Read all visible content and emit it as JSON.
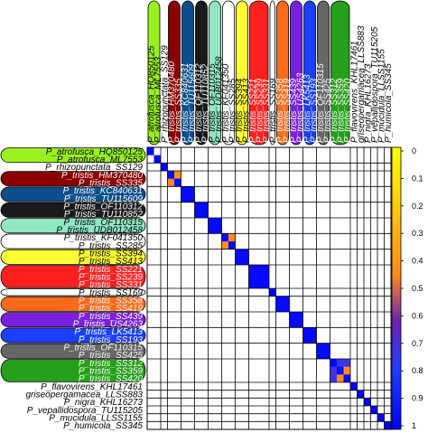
{
  "chart_data": {
    "type": "heatmap",
    "title": "",
    "xlabel": "",
    "ylabel": "",
    "colorbar": {
      "ticks": [
        "0",
        "0.1",
        "0.2",
        "0.3",
        "0.4",
        "0.5",
        "0.6",
        "0.7",
        "0.8",
        "0.9",
        "1"
      ],
      "range": [
        0,
        1
      ],
      "colors": [
        "#ffff00",
        "#ff8c1a",
        "#6a1fb3",
        "#2040ff",
        "#0000ff"
      ]
    },
    "taxa": [
      {
        "label": "P_atrofusca_HQ850125",
        "color": "#99f01f"
      },
      {
        "label": "P_atrofusca_ML7553",
        "color": "#99f01f"
      },
      {
        "label": "P_rhizopunctata_SS129",
        "color": "#ffffff"
      },
      {
        "label": "P_tristis_HM370480",
        "color": "#8b0000"
      },
      {
        "label": "P_tristis_SS335",
        "color": "#8b0000"
      },
      {
        "label": "P_tristis_KC840631",
        "color": "#0c4f8c"
      },
      {
        "label": "P_tristis_TU115609",
        "color": "#0c4f8c"
      },
      {
        "label": "P_tristis_OF110312",
        "color": "#1a1a1a"
      },
      {
        "label": "P_tristis_TU110852",
        "color": "#1a1a1a"
      },
      {
        "label": "P_tristis_OF110315",
        "color": "#8fe8c2"
      },
      {
        "label": "P_tristis_UDB012458",
        "color": "#8fe8c2"
      },
      {
        "label": "P_tristis_KF041350",
        "color": "#ffffff"
      },
      {
        "label": "P_tristis_SS285",
        "color": "#ffffff"
      },
      {
        "label": "P_tristis_SS394",
        "color": "#ffff33"
      },
      {
        "label": "P_tristis_SS413",
        "color": "#ffff33"
      },
      {
        "label": "P_tristis_SS221",
        "color": "#ff2020"
      },
      {
        "label": "P_tristis_SS239",
        "color": "#ff2020"
      },
      {
        "label": "P_tristis_SS331",
        "color": "#ff2020"
      },
      {
        "label": "P_tristis_SS169",
        "color": "#ffffff"
      },
      {
        "label": "P_tristis_SS358",
        "color": "#ff6a1a"
      },
      {
        "label": "P_tristis_SS419",
        "color": "#ff6a1a"
      },
      {
        "label": "P_tristis_SS439",
        "color": "#7a1fe0"
      },
      {
        "label": "P_tristis_US4263",
        "color": "#7a1fe0"
      },
      {
        "label": "P_tristis_LK5413",
        "color": "#1a3fff"
      },
      {
        "label": "P_tristis_SS193",
        "color": "#1a3fff"
      },
      {
        "label": "P_tristis_OF110315",
        "color": "#666666"
      },
      {
        "label": "P_tristis_SS425",
        "color": "#666666"
      },
      {
        "label": "P_tristis_SS312",
        "color": "#26a01a"
      },
      {
        "label": "P_tristis_SS359",
        "color": "#26a01a"
      },
      {
        "label": "P_tristis_SS420",
        "color": "#26a01a"
      },
      {
        "label": "P_flavovirens_KHL17461",
        "color": "#ffffff"
      },
      {
        "label": "griseopergamacea_LLSS883",
        "color": "#ffffff"
      },
      {
        "label": "P_nigra_KHL16273",
        "color": "#ffffff"
      },
      {
        "label": "P_vepallidospora_TU115205",
        "color": "#ffffff"
      },
      {
        "label": "P_mucidula_LLSS1155",
        "color": "#ffffff"
      },
      {
        "label": "P_humicola_SS345",
        "color": "#ffffff"
      }
    ],
    "groups": [
      {
        "start": 0,
        "end": 1,
        "color": "#99f01f"
      },
      {
        "start": 3,
        "end": 4,
        "color": "#8b0000"
      },
      {
        "start": 5,
        "end": 6,
        "color": "#0c4f8c"
      },
      {
        "start": 7,
        "end": 8,
        "color": "#1a1a1a"
      },
      {
        "start": 9,
        "end": 10,
        "color": "#8fe8c2"
      },
      {
        "start": 11,
        "end": 12,
        "color": "#ffffff"
      },
      {
        "start": 13,
        "end": 14,
        "color": "#ffff33"
      },
      {
        "start": 15,
        "end": 17,
        "color": "#ff2020"
      },
      {
        "start": 18,
        "end": 18,
        "color": "#ffffff"
      },
      {
        "start": 19,
        "end": 20,
        "color": "#ff6a1a"
      },
      {
        "start": 21,
        "end": 22,
        "color": "#7a1fe0"
      },
      {
        "start": 23,
        "end": 24,
        "color": "#1a3fff"
      },
      {
        "start": 25,
        "end": 26,
        "color": "#666666"
      },
      {
        "start": 27,
        "end": 29,
        "color": "#26a01a"
      }
    ],
    "grid_lines": [
      2,
      3,
      5,
      7,
      9,
      11,
      13,
      15,
      18,
      19,
      21,
      23,
      25,
      27,
      30,
      31,
      32,
      33,
      34,
      35
    ],
    "heat_blocks": [
      {
        "start": 0,
        "end": 0,
        "value": 0.99
      },
      {
        "start": 1,
        "end": 1,
        "value": 0.99
      },
      {
        "start": 2,
        "end": 2,
        "value": 0.99
      },
      {
        "start": 3,
        "end": 4,
        "value": 0.97
      },
      {
        "start": 5,
        "end": 6,
        "value": 0.97
      },
      {
        "start": 7,
        "end": 8,
        "value": 0.97
      },
      {
        "start": 9,
        "end": 10,
        "value": 0.97
      },
      {
        "start": 11,
        "end": 12,
        "value": 0.97
      },
      {
        "start": 13,
        "end": 14,
        "value": 0.97
      },
      {
        "start": 15,
        "end": 17,
        "value": 0.97
      },
      {
        "start": 18,
        "end": 18,
        "value": 0.99
      },
      {
        "start": 19,
        "end": 20,
        "value": 0.97
      },
      {
        "start": 21,
        "end": 22,
        "value": 0.97
      },
      {
        "start": 23,
        "end": 24,
        "value": 0.97
      },
      {
        "start": 25,
        "end": 26,
        "value": 0.97
      },
      {
        "start": 27,
        "end": 29,
        "value": 0.97
      },
      {
        "start": 30,
        "end": 30,
        "value": 0.99
      },
      {
        "start": 31,
        "end": 31,
        "value": 0.99
      },
      {
        "start": 32,
        "end": 32,
        "value": 0.99
      },
      {
        "start": 33,
        "end": 33,
        "value": 0.99
      },
      {
        "start": 34,
        "end": 34,
        "value": 0.99
      },
      {
        "start": 35,
        "end": 35,
        "value": 0.99
      }
    ],
    "heat_cells": [
      {
        "row": 3,
        "col": 4,
        "value": 0.45
      },
      {
        "row": 4,
        "col": 3,
        "value": 0.45
      },
      {
        "row": 11,
        "col": 12,
        "value": 0.45
      },
      {
        "row": 12,
        "col": 11,
        "value": 0.45
      },
      {
        "row": 27,
        "col": 28,
        "value": 0.72
      },
      {
        "row": 27,
        "col": 29,
        "value": 0.72
      },
      {
        "row": 28,
        "col": 27,
        "value": 0.72
      },
      {
        "row": 28,
        "col": 29,
        "value": 0.45
      },
      {
        "row": 29,
        "col": 27,
        "value": 0.72
      },
      {
        "row": 29,
        "col": 28,
        "value": 0.45
      }
    ]
  }
}
